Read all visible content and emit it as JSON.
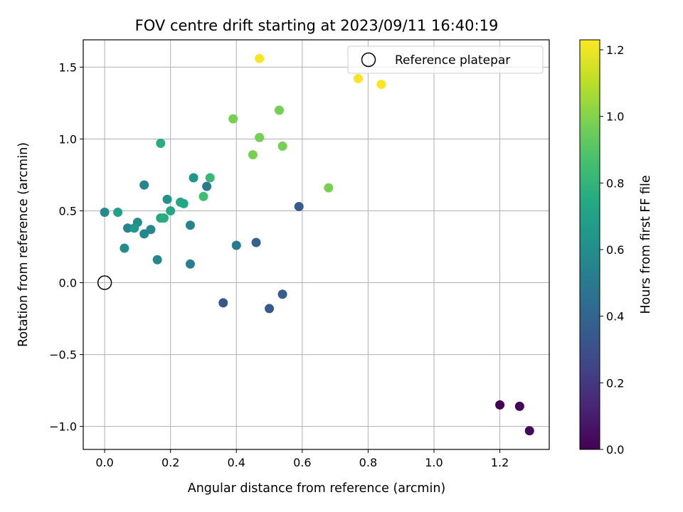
{
  "chart_data": {
    "type": "scatter",
    "title": "FOV centre drift starting at 2023/09/11 16:40:19",
    "xlabel": "Angular distance from reference (arcmin)",
    "ylabel": "Rotation from reference (arcmin)",
    "xlim": [
      -0.065,
      1.35
    ],
    "ylim": [
      -1.16,
      1.69
    ],
    "xticks": [
      0.0,
      0.2,
      0.4,
      0.6,
      0.8,
      1.0,
      1.2
    ],
    "xtick_labels": [
      "0.0",
      "0.2",
      "0.4",
      "0.6",
      "0.8",
      "1.0",
      "1.2"
    ],
    "yticks": [
      -1.0,
      -0.5,
      0.0,
      0.5,
      1.0,
      1.5
    ],
    "ytick_labels": [
      "−1.0",
      "−0.5",
      "0.0",
      "0.5",
      "1.0",
      "1.5"
    ],
    "grid": true,
    "legend": {
      "position": "top-right",
      "label": "Reference platepar"
    },
    "reference_point": {
      "x": 0.0,
      "y": 0.0
    },
    "colorbar": {
      "label": "Hours from first FF file",
      "colormap": "viridis",
      "range": [
        0.0,
        1.23
      ],
      "ticks": [
        0.0,
        0.2,
        0.4,
        0.6,
        0.8,
        1.0,
        1.2
      ],
      "tick_labels": [
        "0.0",
        "0.2",
        "0.4",
        "0.6",
        "0.8",
        "1.0",
        "1.2"
      ]
    },
    "points": [
      {
        "x": 1.2,
        "y": -0.85,
        "c": 0.0
      },
      {
        "x": 1.26,
        "y": -0.86,
        "c": 0.01
      },
      {
        "x": 1.29,
        "y": -1.03,
        "c": 0.02
      },
      {
        "x": 0.36,
        "y": -0.14,
        "c": 0.33
      },
      {
        "x": 0.5,
        "y": -0.18,
        "c": 0.34
      },
      {
        "x": 0.54,
        "y": -0.08,
        "c": 0.36
      },
      {
        "x": 0.59,
        "y": 0.53,
        "c": 0.35
      },
      {
        "x": 0.46,
        "y": 0.28,
        "c": 0.38
      },
      {
        "x": 0.4,
        "y": 0.26,
        "c": 0.5
      },
      {
        "x": 0.26,
        "y": 0.13,
        "c": 0.52
      },
      {
        "x": 0.31,
        "y": 0.67,
        "c": 0.5
      },
      {
        "x": 0.26,
        "y": 0.4,
        "c": 0.55
      },
      {
        "x": 0.16,
        "y": 0.16,
        "c": 0.57
      },
      {
        "x": 0.06,
        "y": 0.24,
        "c": 0.6
      },
      {
        "x": 0.12,
        "y": 0.34,
        "c": 0.57
      },
      {
        "x": 0.14,
        "y": 0.37,
        "c": 0.56
      },
      {
        "x": 0.12,
        "y": 0.68,
        "c": 0.55
      },
      {
        "x": 0.07,
        "y": 0.38,
        "c": 0.55
      },
      {
        "x": 0.0,
        "y": 0.49,
        "c": 0.58
      },
      {
        "x": 0.1,
        "y": 0.42,
        "c": 0.6
      },
      {
        "x": 0.09,
        "y": 0.38,
        "c": 0.64
      },
      {
        "x": 0.19,
        "y": 0.58,
        "c": 0.62
      },
      {
        "x": 0.27,
        "y": 0.73,
        "c": 0.63
      },
      {
        "x": 0.04,
        "y": 0.49,
        "c": 0.7
      },
      {
        "x": 0.17,
        "y": 0.45,
        "c": 0.72
      },
      {
        "x": 0.18,
        "y": 0.45,
        "c": 0.76
      },
      {
        "x": 0.2,
        "y": 0.5,
        "c": 0.74
      },
      {
        "x": 0.23,
        "y": 0.56,
        "c": 0.74
      },
      {
        "x": 0.24,
        "y": 0.55,
        "c": 0.74
      },
      {
        "x": 0.17,
        "y": 0.97,
        "c": 0.76
      },
      {
        "x": 0.32,
        "y": 0.73,
        "c": 0.82
      },
      {
        "x": 0.3,
        "y": 0.6,
        "c": 0.85
      },
      {
        "x": 0.39,
        "y": 1.14,
        "c": 0.98
      },
      {
        "x": 0.45,
        "y": 0.89,
        "c": 0.98
      },
      {
        "x": 0.47,
        "y": 1.01,
        "c": 0.97
      },
      {
        "x": 0.53,
        "y": 1.2,
        "c": 0.97
      },
      {
        "x": 0.54,
        "y": 0.95,
        "c": 0.97
      },
      {
        "x": 0.68,
        "y": 0.66,
        "c": 0.98
      },
      {
        "x": 0.47,
        "y": 1.56,
        "c": 1.22
      },
      {
        "x": 0.77,
        "y": 1.42,
        "c": 1.22
      },
      {
        "x": 0.84,
        "y": 1.38,
        "c": 1.22
      }
    ]
  }
}
